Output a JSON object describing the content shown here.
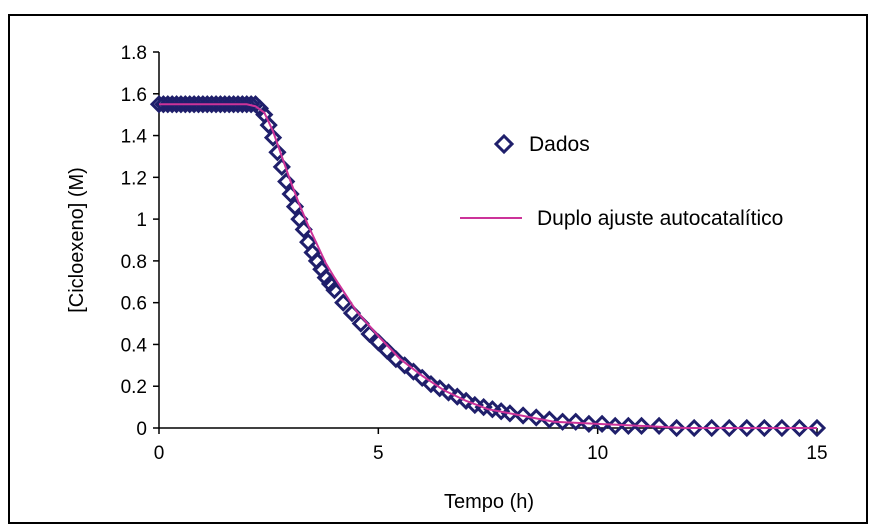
{
  "chart_data": {
    "type": "scatter",
    "xlabel": "Tempo (h)",
    "ylabel": "[Cicloexeno] (M)",
    "xlim": [
      0,
      15
    ],
    "ylim": [
      0,
      1.8
    ],
    "xticks": [
      "0",
      "5",
      "10",
      "15"
    ],
    "yticks": [
      "0",
      "0.2",
      "0.4",
      "0.6",
      "0.8",
      "1",
      "1.2",
      "1.4",
      "1.6",
      "1.8"
    ],
    "grid": false,
    "legend_position": "right",
    "series": [
      {
        "name": "Dados",
        "marker": "diamond-open",
        "color": "#1f1f6b",
        "x": [
          0,
          0.1,
          0.2,
          0.3,
          0.4,
          0.5,
          0.6,
          0.7,
          0.8,
          0.9,
          1.0,
          1.1,
          1.2,
          1.3,
          1.4,
          1.5,
          1.6,
          1.7,
          1.8,
          1.9,
          2.0,
          2.1,
          2.2,
          2.3,
          2.4,
          2.5,
          2.6,
          2.7,
          2.8,
          2.9,
          3.0,
          3.1,
          3.2,
          3.3,
          3.4,
          3.5,
          3.6,
          3.7,
          3.8,
          3.9,
          4.0,
          4.2,
          4.4,
          4.6,
          4.8,
          5.0,
          5.2,
          5.4,
          5.6,
          5.8,
          6.0,
          6.2,
          6.4,
          6.6,
          6.8,
          7.0,
          7.2,
          7.4,
          7.6,
          7.8,
          8.0,
          8.3,
          8.6,
          8.9,
          9.2,
          9.5,
          9.8,
          10.1,
          10.4,
          10.7,
          11.0,
          11.4,
          11.8,
          12.2,
          12.6,
          13.0,
          13.4,
          13.8,
          14.2,
          14.6,
          15.0
        ],
        "y": [
          1.55,
          1.55,
          1.55,
          1.55,
          1.55,
          1.55,
          1.55,
          1.55,
          1.55,
          1.55,
          1.55,
          1.55,
          1.55,
          1.55,
          1.55,
          1.55,
          1.55,
          1.55,
          1.55,
          1.55,
          1.55,
          1.55,
          1.55,
          1.53,
          1.5,
          1.45,
          1.39,
          1.32,
          1.25,
          1.18,
          1.12,
          1.06,
          1.0,
          0.95,
          0.89,
          0.84,
          0.8,
          0.76,
          0.72,
          0.69,
          0.66,
          0.6,
          0.55,
          0.5,
          0.45,
          0.41,
          0.37,
          0.33,
          0.3,
          0.27,
          0.24,
          0.21,
          0.19,
          0.17,
          0.15,
          0.13,
          0.11,
          0.1,
          0.09,
          0.08,
          0.07,
          0.06,
          0.05,
          0.04,
          0.03,
          0.03,
          0.02,
          0.02,
          0.01,
          0.01,
          0.01,
          0.01,
          0.0,
          0.0,
          0.0,
          0.0,
          0.0,
          0.0,
          0.0,
          0.0,
          0.0
        ]
      },
      {
        "name": "Duplo ajuste autocatalítico",
        "marker": "line",
        "color": "#cc3399",
        "x": [
          0,
          1.0,
          2.0,
          2.2,
          2.4,
          2.6,
          2.8,
          3.0,
          3.2,
          3.4,
          3.6,
          3.8,
          4.0,
          4.5,
          5.0,
          5.5,
          6.0,
          6.5,
          7.0,
          7.5,
          8.0,
          9.0,
          10.0,
          11.0,
          12.0,
          13.0,
          14.0,
          15.0
        ],
        "y": [
          1.55,
          1.55,
          1.55,
          1.54,
          1.51,
          1.42,
          1.3,
          1.18,
          1.07,
          0.97,
          0.88,
          0.79,
          0.72,
          0.56,
          0.44,
          0.33,
          0.25,
          0.18,
          0.13,
          0.09,
          0.07,
          0.03,
          0.02,
          0.01,
          0.0,
          0.0,
          0.0,
          0.0
        ]
      }
    ]
  }
}
